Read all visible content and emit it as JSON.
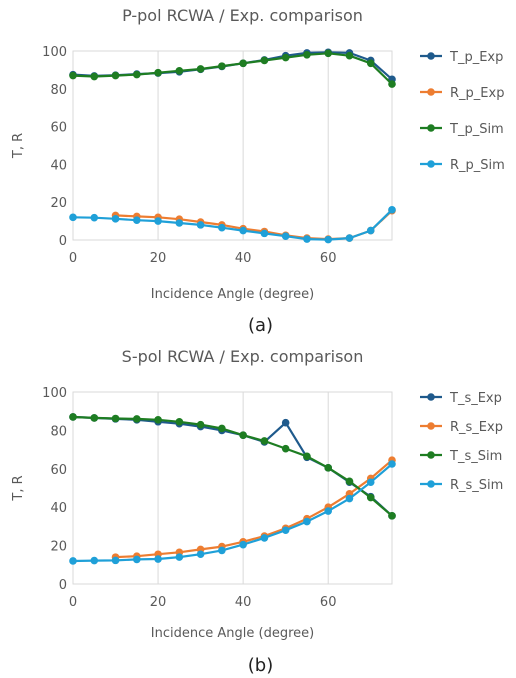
{
  "chart_data": [
    {
      "type": "line",
      "caption": "(a)",
      "title": "P-pol RCWA / Exp. comparison",
      "xlabel": "Incidence Angle (degree)",
      "ylabel": "T, R",
      "xlim": [
        0,
        75
      ],
      "ylim": [
        0,
        100
      ],
      "xticks": [
        0,
        20,
        40,
        60
      ],
      "yticks": [
        0,
        20,
        40,
        60,
        80,
        100
      ],
      "grid": "x-only",
      "legend_position": "right",
      "series": [
        {
          "name": "T_p_Exp",
          "color": "#1f5a8c",
          "x": [
            0,
            5,
            10,
            15,
            20,
            25,
            30,
            35,
            40,
            45,
            50,
            55,
            60,
            65,
            70,
            75
          ],
          "y": [
            87.5,
            86.8,
            87.2,
            87.8,
            88.3,
            89,
            90.3,
            91.8,
            93.5,
            95.3,
            97.5,
            99,
            99.3,
            99,
            95,
            85
          ]
        },
        {
          "name": "R_p_Exp",
          "color": "#ed7d31",
          "x": [
            10,
            15,
            20,
            25,
            30,
            35,
            40,
            45,
            50,
            55,
            60,
            65,
            70,
            75
          ],
          "y": [
            13,
            12.5,
            12,
            11,
            9.5,
            8,
            6,
            4.5,
            2.5,
            1,
            0.5,
            1,
            5,
            15.5
          ]
        },
        {
          "name": "T_p_Sim",
          "color": "#1e7d22",
          "x": [
            0,
            5,
            10,
            15,
            20,
            25,
            30,
            35,
            40,
            45,
            50,
            55,
            60,
            65,
            70,
            75
          ],
          "y": [
            87,
            86.5,
            87,
            87.5,
            88.5,
            89.5,
            90.5,
            92,
            93.5,
            95,
            96.5,
            98,
            98.8,
            97.5,
            93.5,
            82.5
          ]
        },
        {
          "name": "R_p_Sim",
          "color": "#1fa0d8",
          "x": [
            0,
            5,
            10,
            15,
            20,
            25,
            30,
            35,
            40,
            45,
            50,
            55,
            60,
            65,
            70,
            75
          ],
          "y": [
            12,
            11.8,
            11.2,
            10.5,
            10,
            9,
            8,
            6.5,
            5,
            3.5,
            2,
            0.5,
            0.2,
            1,
            5,
            16
          ]
        }
      ]
    },
    {
      "type": "line",
      "caption": "(b)",
      "title": "S-pol RCWA / Exp. comparison",
      "xlabel": "Incidence Angle (degree)",
      "ylabel": "T, R",
      "xlim": [
        0,
        75
      ],
      "ylim": [
        0,
        100
      ],
      "xticks": [
        0,
        20,
        40,
        60
      ],
      "yticks": [
        0,
        20,
        40,
        60,
        80,
        100
      ],
      "grid": "x-only",
      "legend_position": "right",
      "series": [
        {
          "name": "T_s_Exp",
          "color": "#1f5a8c",
          "x": [
            0,
            5,
            10,
            15,
            20,
            25,
            30,
            35,
            40,
            45,
            50,
            55,
            60,
            65,
            70,
            75
          ],
          "y": [
            87,
            86.5,
            86,
            85.5,
            84.5,
            83.5,
            82,
            80,
            77.5,
            74,
            84,
            66,
            60.5,
            53,
            45.5,
            35.5
          ]
        },
        {
          "name": "R_s_Exp",
          "color": "#ed7d31",
          "x": [
            10,
            15,
            20,
            25,
            30,
            35,
            40,
            45,
            50,
            55,
            60,
            65,
            70,
            75
          ],
          "y": [
            14,
            14.5,
            15.5,
            16.5,
            18,
            19.5,
            22,
            25,
            29,
            34,
            40,
            47,
            55,
            64.5
          ]
        },
        {
          "name": "T_s_Sim",
          "color": "#1e7d22",
          "x": [
            0,
            5,
            10,
            15,
            20,
            25,
            30,
            35,
            40,
            45,
            50,
            55,
            60,
            65,
            70,
            75
          ],
          "y": [
            87,
            86.5,
            86.2,
            86,
            85.5,
            84.5,
            83,
            81,
            77.5,
            74.5,
            70.5,
            66.5,
            60.5,
            53.5,
            45,
            35.5
          ]
        },
        {
          "name": "R_s_Sim",
          "color": "#1fa0d8",
          "x": [
            0,
            5,
            10,
            15,
            20,
            25,
            30,
            35,
            40,
            45,
            50,
            55,
            60,
            65,
            70,
            75
          ],
          "y": [
            12,
            12.2,
            12.3,
            12.8,
            13,
            14,
            15.5,
            17.5,
            20.5,
            24,
            28,
            32.5,
            38,
            44.5,
            53,
            62.5
          ]
        }
      ]
    }
  ]
}
